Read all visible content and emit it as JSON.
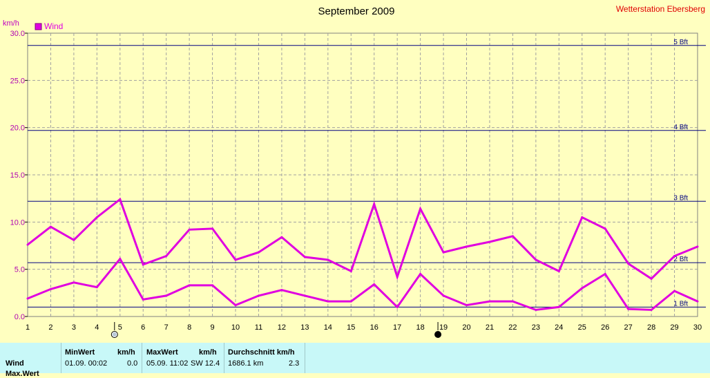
{
  "header": {
    "title": "September 2009",
    "station": "Wetterstation Ebersberg",
    "unit": "km/h",
    "legend": "Wind",
    "legend_color": "#e000e0"
  },
  "beaufort": [
    {
      "label": "1 Bft",
      "value": 1.0
    },
    {
      "label": "2 Bft",
      "value": 5.7
    },
    {
      "label": "3 Bft",
      "value": 12.2
    },
    {
      "label": "4 Bft",
      "value": 19.7
    },
    {
      "label": "5 Bft",
      "value": 28.7
    }
  ],
  "moon_markers": [
    {
      "day": 5,
      "phase": "full-moon"
    },
    {
      "day": 19,
      "phase": "new-moon"
    }
  ],
  "chart_data": {
    "type": "line",
    "title": "September 2009",
    "ylabel": "km/h",
    "ylim": [
      0,
      30
    ],
    "yticks": [
      "0.0",
      "5.0",
      "10.0",
      "15.0",
      "20.0",
      "25.0",
      "30.0"
    ],
    "x": [
      1,
      2,
      3,
      4,
      5,
      6,
      7,
      8,
      9,
      10,
      11,
      12,
      13,
      14,
      15,
      16,
      17,
      18,
      19,
      20,
      21,
      22,
      23,
      24,
      25,
      26,
      27,
      28,
      29,
      30
    ],
    "grid": true,
    "legend_position": "top-left",
    "series": [
      {
        "name": "Wind",
        "color": "#e000e0",
        "values": [
          7.6,
          9.5,
          8.1,
          10.5,
          12.4,
          5.5,
          6.4,
          9.2,
          9.3,
          6.0,
          6.8,
          8.4,
          6.3,
          6.0,
          4.8,
          11.9,
          4.2,
          11.4,
          6.8,
          7.4,
          7.9,
          8.5,
          6.0,
          4.8,
          10.5,
          9.3,
          5.6,
          4.0,
          6.4,
          7.4
        ]
      },
      {
        "color": "#e000e0",
        "values": [
          1.9,
          2.9,
          3.6,
          3.1,
          6.1,
          1.8,
          2.2,
          3.3,
          3.3,
          1.2,
          2.2,
          2.8,
          2.2,
          1.6,
          1.6,
          3.4,
          1.0,
          4.5,
          2.2,
          1.2,
          1.6,
          1.6,
          0.7,
          1.0,
          3.0,
          4.5,
          0.8,
          0.7,
          2.7,
          1.6
        ]
      }
    ]
  },
  "stats": {
    "headers": {
      "min": "MinWert",
      "min_unit": "km/h",
      "max": "MaxWert",
      "max_unit": "km/h",
      "avg": "Durchschnitt km/h"
    },
    "rows": [
      {
        "label": "Wind",
        "min_date": "01.09.  00:02",
        "min_value": "0.0",
        "max_date": "05.09.  11:02",
        "max_value": "SW 12.4",
        "avg_dist": "1686.1 km",
        "avg_value": "2.3"
      },
      {
        "label": "Max.Wert"
      }
    ]
  }
}
